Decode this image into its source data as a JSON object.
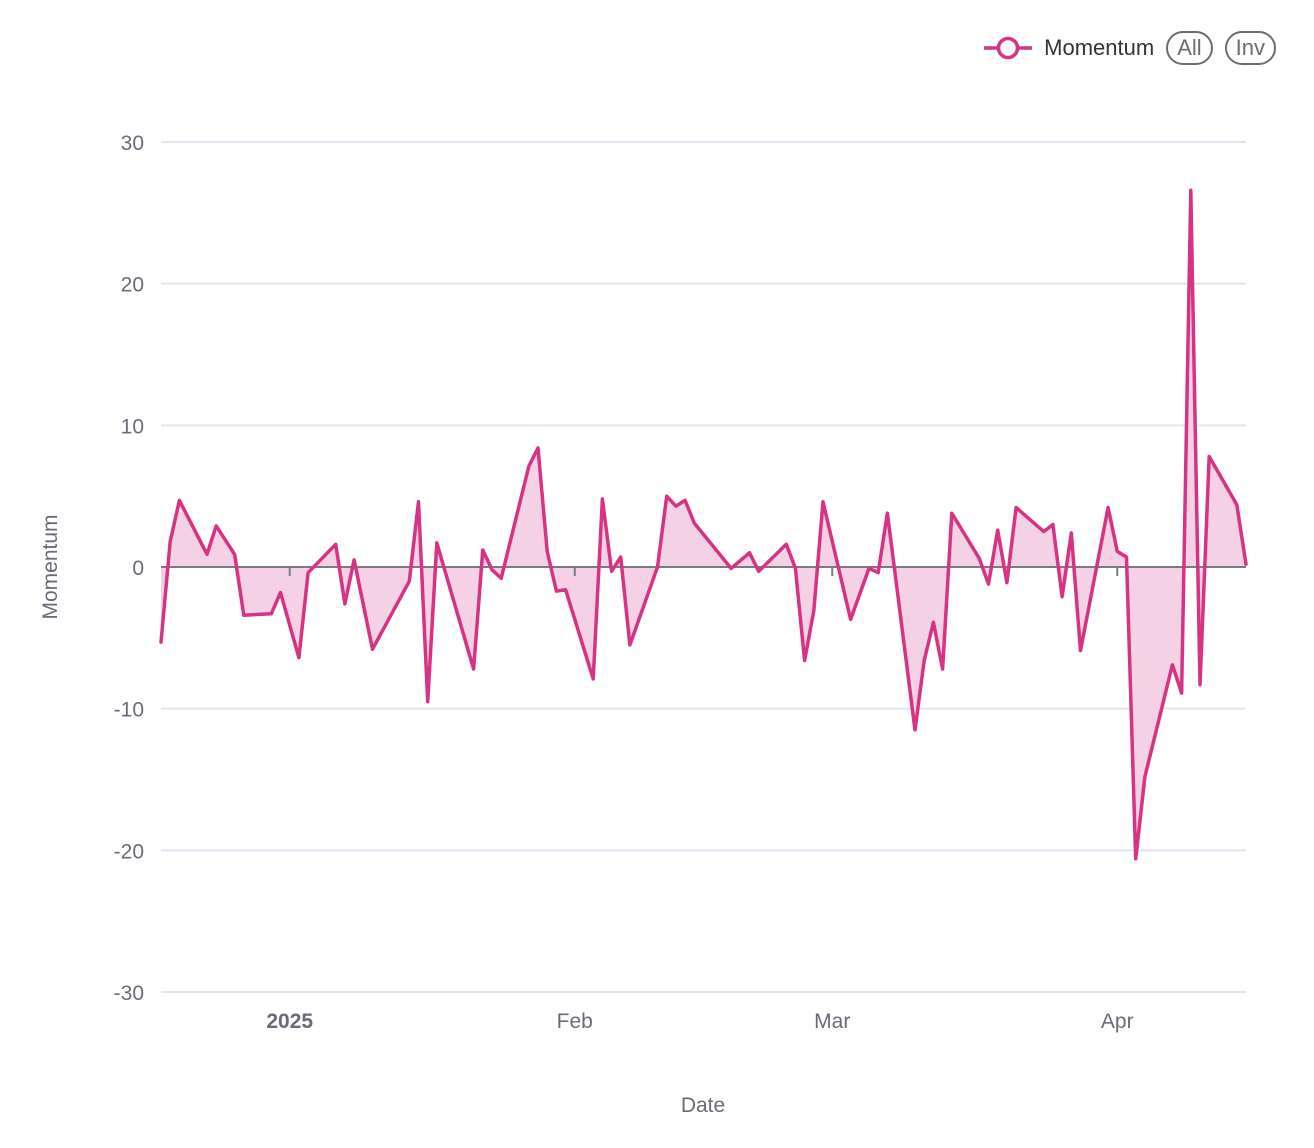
{
  "legend": {
    "series_label": "Momentum",
    "all_label": "All",
    "inv_label": "Inv"
  },
  "colors": {
    "line": "#d63384",
    "area": "#f5d1e6",
    "grid": "#e4e3f0",
    "zero_line": "#7a7a84"
  },
  "chart_data": {
    "type": "area",
    "xlabel": "Date",
    "ylabel": "Momentum",
    "ylim": [
      -30,
      30
    ],
    "xlim": [
      "2024-12-18",
      "2025-04-15"
    ],
    "yticks": [
      -30,
      -20,
      -10,
      0,
      10,
      20,
      30
    ],
    "xticks": [
      {
        "date": "2025-01-01",
        "label": "2025",
        "bold": true
      },
      {
        "date": "2025-02-01",
        "label": "Feb",
        "bold": false
      },
      {
        "date": "2025-03-01",
        "label": "Mar",
        "bold": false
      },
      {
        "date": "2025-04-01",
        "label": "Apr",
        "bold": false
      }
    ],
    "grid": true,
    "legend_position": "top-right",
    "series": [
      {
        "name": "Momentum",
        "points": [
          [
            "2024-12-18",
            -5.3
          ],
          [
            "2024-12-19",
            1.8
          ],
          [
            "2024-12-20",
            4.7
          ],
          [
            "2024-12-23",
            0.9
          ],
          [
            "2024-12-24",
            2.9
          ],
          [
            "2024-12-26",
            0.9
          ],
          [
            "2024-12-27",
            -3.4
          ],
          [
            "2024-12-30",
            -3.3
          ],
          [
            "2024-12-31",
            -1.8
          ],
          [
            "2025-01-02",
            -6.4
          ],
          [
            "2025-01-03",
            -0.4
          ],
          [
            "2025-01-06",
            1.6
          ],
          [
            "2025-01-07",
            -2.6
          ],
          [
            "2025-01-08",
            0.5
          ],
          [
            "2025-01-10",
            -5.8
          ],
          [
            "2025-01-13",
            -2.2
          ],
          [
            "2025-01-14",
            -1.0
          ],
          [
            "2025-01-15",
            4.6
          ],
          [
            "2025-01-16",
            -9.5
          ],
          [
            "2025-01-17",
            1.7
          ],
          [
            "2025-01-21",
            -7.2
          ],
          [
            "2025-01-22",
            1.2
          ],
          [
            "2025-01-23",
            -0.2
          ],
          [
            "2025-01-24",
            -0.8
          ],
          [
            "2025-01-27",
            7.1
          ],
          [
            "2025-01-28",
            8.4
          ],
          [
            "2025-01-29",
            1.1
          ],
          [
            "2025-01-30",
            -1.7
          ],
          [
            "2025-01-31",
            -1.6
          ],
          [
            "2025-02-03",
            -7.9
          ],
          [
            "2025-02-04",
            4.8
          ],
          [
            "2025-02-05",
            -0.3
          ],
          [
            "2025-02-06",
            0.7
          ],
          [
            "2025-02-07",
            -5.5
          ],
          [
            "2025-02-10",
            0.0
          ],
          [
            "2025-02-11",
            5.0
          ],
          [
            "2025-02-12",
            4.3
          ],
          [
            "2025-02-13",
            4.7
          ],
          [
            "2025-02-14",
            3.1
          ],
          [
            "2025-02-18",
            -0.1
          ],
          [
            "2025-02-20",
            1.0
          ],
          [
            "2025-02-21",
            -0.3
          ],
          [
            "2025-02-24",
            1.6
          ],
          [
            "2025-02-25",
            -0.1
          ],
          [
            "2025-02-26",
            -6.6
          ],
          [
            "2025-02-27",
            -3.1
          ],
          [
            "2025-02-28",
            4.6
          ],
          [
            "2025-03-03",
            -3.7
          ],
          [
            "2025-03-05",
            -0.1
          ],
          [
            "2025-03-06",
            -0.4
          ],
          [
            "2025-03-07",
            3.8
          ],
          [
            "2025-03-10",
            -11.5
          ],
          [
            "2025-03-11",
            -6.6
          ],
          [
            "2025-03-12",
            -3.9
          ],
          [
            "2025-03-13",
            -7.2
          ],
          [
            "2025-03-14",
            3.8
          ],
          [
            "2025-03-17",
            0.6
          ],
          [
            "2025-03-18",
            -1.2
          ],
          [
            "2025-03-19",
            2.6
          ],
          [
            "2025-03-20",
            -1.1
          ],
          [
            "2025-03-21",
            4.2
          ],
          [
            "2025-03-24",
            2.5
          ],
          [
            "2025-03-25",
            3.0
          ],
          [
            "2025-03-26",
            -2.1
          ],
          [
            "2025-03-27",
            2.4
          ],
          [
            "2025-03-28",
            -5.9
          ],
          [
            "2025-03-31",
            4.2
          ],
          [
            "2025-04-01",
            1.1
          ],
          [
            "2025-04-02",
            0.7
          ],
          [
            "2025-04-03",
            -20.6
          ],
          [
            "2025-04-04",
            -14.8
          ],
          [
            "2025-04-07",
            -6.9
          ],
          [
            "2025-04-08",
            -8.9
          ],
          [
            "2025-04-09",
            26.6
          ],
          [
            "2025-04-10",
            -8.3
          ],
          [
            "2025-04-11",
            7.8
          ],
          [
            "2025-04-14",
            4.4
          ],
          [
            "2025-04-15",
            0.2
          ]
        ]
      }
    ]
  }
}
